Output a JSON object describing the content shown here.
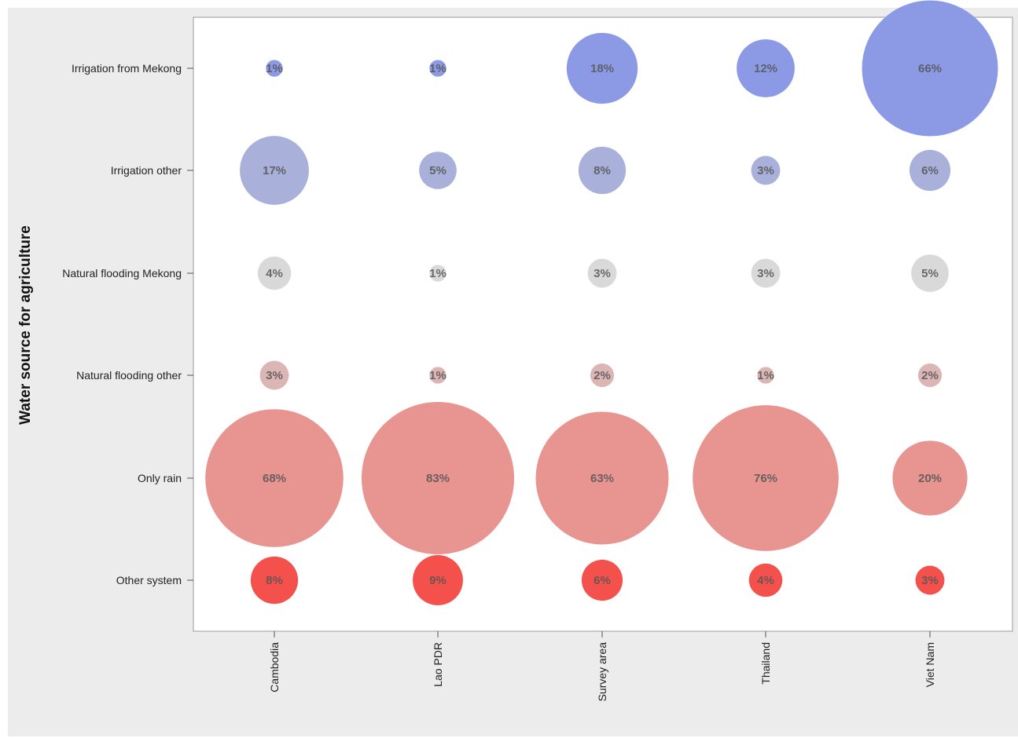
{
  "chart_data": {
    "type": "bubble",
    "title": "",
    "xlabel": "",
    "ylabel": "Water source for agriculture",
    "categories_x": [
      "Cambodia",
      "Lao PDR",
      "Survey area",
      "Thailand",
      "Viet Nam"
    ],
    "categories_y": [
      "Irrigation from Mekong",
      "Irrigation other",
      "Natural flooding Mekong",
      "Natural flooding other",
      "Only rain",
      "Other system"
    ],
    "series": [
      {
        "row": "Irrigation from Mekong",
        "color": "#8c9ae6",
        "values": [
          1,
          1,
          18,
          12,
          66
        ],
        "labels": [
          "1%",
          "1%",
          "18%",
          "12%",
          "66%"
        ]
      },
      {
        "row": "Irrigation other",
        "color": "#a9b0da",
        "values": [
          17,
          5,
          8,
          3,
          6
        ],
        "labels": [
          "17%",
          "5%",
          "8%",
          "3%",
          "6%"
        ]
      },
      {
        "row": "Natural flooding Mekong",
        "color": "#d9d9d9",
        "values": [
          4,
          1,
          3,
          3,
          5
        ],
        "labels": [
          "4%",
          "1%",
          "3%",
          "3%",
          "5%"
        ]
      },
      {
        "row": "Natural flooding other",
        "color": "#dcb5b5",
        "values": [
          3,
          1,
          2,
          1,
          2
        ],
        "labels": [
          "3%",
          "1%",
          "2%",
          "1%",
          "2%"
        ]
      },
      {
        "row": "Only rain",
        "color": "#e89490",
        "values": [
          68,
          83,
          63,
          76,
          20
        ],
        "labels": [
          "68%",
          "83%",
          "63%",
          "76%",
          "20%"
        ]
      },
      {
        "row": "Other system",
        "color": "#f4514c",
        "values": [
          8,
          9,
          6,
          4,
          3
        ],
        "labels": [
          "8%",
          "9%",
          "6%",
          "4%",
          "3%"
        ]
      }
    ],
    "grid": false,
    "legend": "none"
  }
}
